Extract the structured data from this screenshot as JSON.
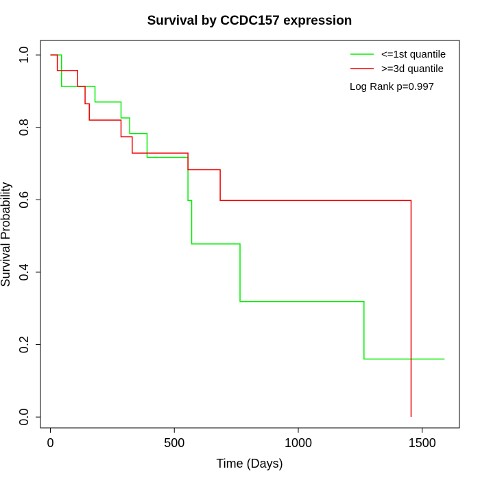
{
  "chart_data": {
    "type": "line",
    "title": "Survival by CCDC157 expression",
    "xlabel": "Time (Days)",
    "ylabel": "Survival Probability",
    "xlim": [
      -40,
      1650
    ],
    "ylim": [
      -0.03,
      1.04
    ],
    "x_ticks": [
      0,
      500,
      1000,
      1500
    ],
    "y_ticks": [
      0.0,
      0.2,
      0.4,
      0.6,
      0.8,
      1.0
    ],
    "x_tick_labels": [
      "0",
      "500",
      "1000",
      "1500"
    ],
    "y_tick_labels": [
      "0.0",
      "0.2",
      "0.4",
      "0.6",
      "0.8",
      "1.0"
    ],
    "grid": false,
    "legend_position": "top-right",
    "annotation": "Log Rank p=0.997",
    "series": [
      {
        "name": "<=1st quantile",
        "color": "#00ee00",
        "step_x": [
          0,
          45,
          180,
          285,
          320,
          390,
          555,
          570,
          765,
          1265,
          1590
        ],
        "step_y": [
          1.0,
          0.913,
          0.87,
          0.826,
          0.783,
          0.717,
          0.598,
          0.478,
          0.319,
          0.16,
          0.16
        ]
      },
      {
        "name": ">=3d quantile",
        "color": "#ee0000",
        "step_x": [
          0,
          28,
          110,
          140,
          157,
          285,
          330,
          555,
          685,
          1455,
          1455
        ],
        "step_y": [
          1.0,
          0.957,
          0.913,
          0.865,
          0.82,
          0.774,
          0.729,
          0.683,
          0.598,
          0.513,
          0.0
        ]
      }
    ]
  }
}
